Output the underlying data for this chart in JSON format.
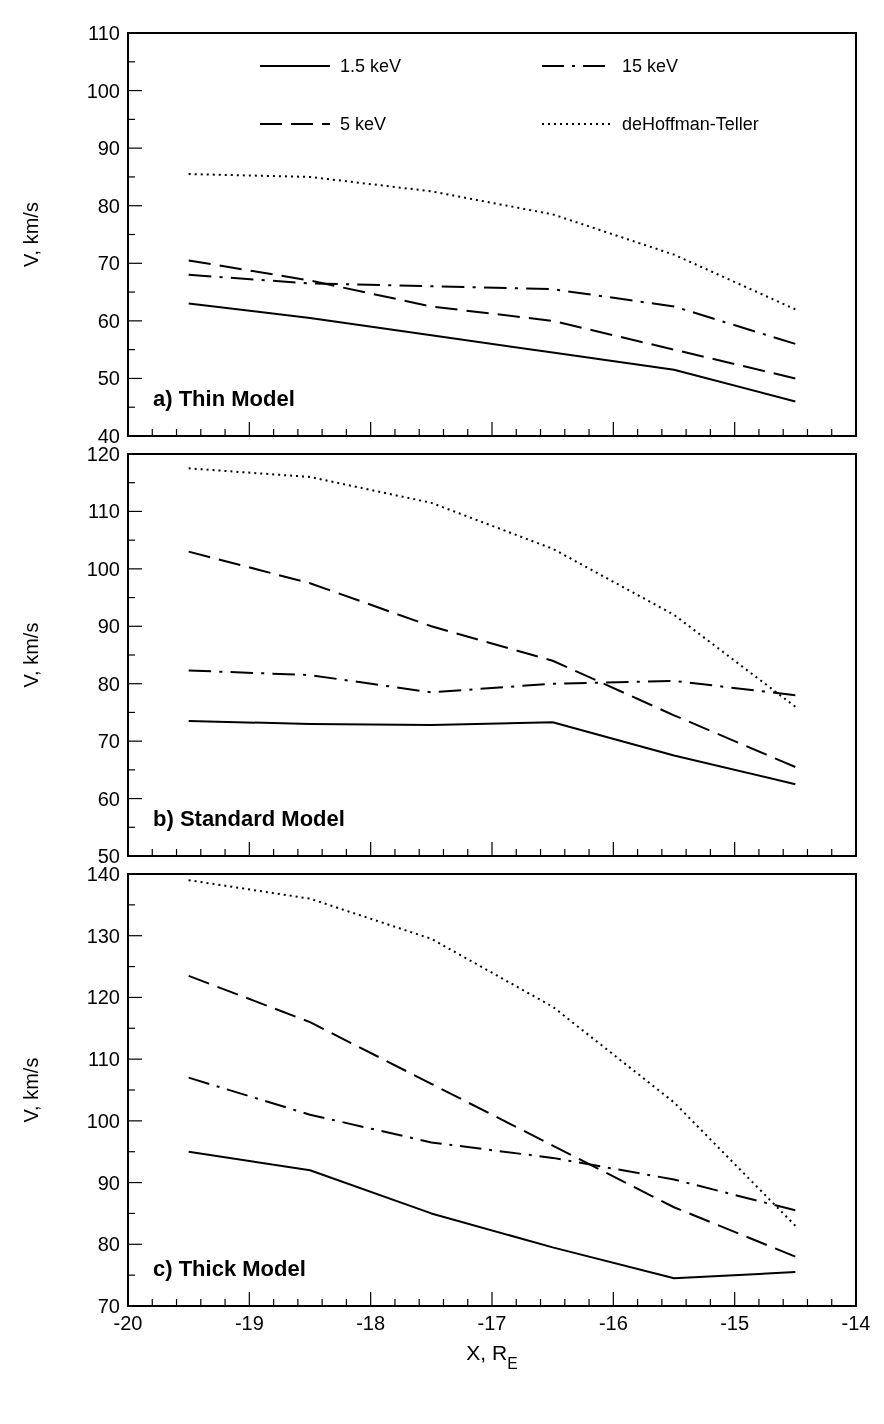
{
  "chart_data": [
    {
      "type": "line",
      "ylabel": "V, km/s",
      "annotations": [
        "a) Thin Model"
      ],
      "x": [
        -19.5,
        -18.5,
        -17.5,
        -16.5,
        -15.5,
        -14.5
      ],
      "xlim": [
        -20,
        -14
      ],
      "ylim": [
        40,
        110
      ],
      "tick_labels": "y",
      "legend": "top",
      "grid": false,
      "marker": "none",
      "xticks": [
        -20,
        {
          "value": -19.8,
          "label": null
        },
        {
          "value": -19.6,
          "label": null
        },
        {
          "value": -19.4,
          "label": null
        },
        {
          "value": -19.2,
          "label": null
        },
        -19,
        {
          "value": -18.8,
          "label": null
        },
        {
          "value": -18.6,
          "label": null
        },
        {
          "value": -18.4,
          "label": null
        },
        {
          "value": -18.2,
          "label": null
        },
        -18,
        {
          "value": -17.8,
          "label": null
        },
        {
          "value": -17.6,
          "label": null
        },
        {
          "value": -17.4,
          "label": null
        },
        {
          "value": -17.2,
          "label": null
        },
        -17,
        {
          "value": -16.8,
          "label": null
        },
        {
          "value": -16.6,
          "label": null
        },
        {
          "value": -16.4,
          "label": null
        },
        {
          "value": -16.2,
          "label": null
        },
        -16,
        {
          "value": -15.8,
          "label": null
        },
        {
          "value": -15.6,
          "label": null
        },
        {
          "value": -15.4,
          "label": null
        },
        {
          "value": -15.2,
          "label": null
        },
        -15,
        {
          "value": -14.8,
          "label": null
        },
        {
          "value": -14.6,
          "label": null
        },
        {
          "value": -14.4,
          "label": null
        },
        {
          "value": -14.2,
          "label": null
        },
        -14
      ],
      "yticks": [
        40,
        {
          "value": 45,
          "label": null
        },
        50,
        {
          "value": 55,
          "label": null
        },
        60,
        {
          "value": 65,
          "label": null
        },
        70,
        {
          "value": 75,
          "label": null
        },
        80,
        {
          "value": 85,
          "label": null
        },
        90,
        {
          "value": 95,
          "label": null
        },
        100,
        {
          "value": 105,
          "label": null
        },
        110
      ],
      "series": [
        {
          "name": "1.5 keV",
          "color": "#000000",
          "line_style": "solid",
          "values": [
            63,
            60.5,
            57.5,
            54.5,
            51.5,
            46
          ]
        },
        {
          "name": "5 keV",
          "color": "#000000",
          "line_style": "dashed",
          "values": [
            70.5,
            67,
            62.5,
            60,
            55,
            50
          ]
        },
        {
          "name": "15 keV",
          "color": "#000000",
          "line_style": "dashdot",
          "values": [
            68,
            66.5,
            66,
            65.5,
            62.5,
            56
          ]
        },
        {
          "name": "deHoffman-Teller",
          "color": "#000000",
          "line_style": "dotted",
          "values": [
            85.5,
            85,
            82.5,
            78.5,
            71.5,
            62
          ]
        }
      ]
    },
    {
      "type": "line",
      "ylabel": "V, km/s",
      "annotations": [
        "b) Standard Model"
      ],
      "x": [
        -19.5,
        -18.5,
        -17.5,
        -16.5,
        -15.5,
        -14.5
      ],
      "xlim": [
        -20,
        -14
      ],
      "ylim": [
        50,
        120
      ],
      "tick_labels": "y",
      "grid": false,
      "marker": "none",
      "xticks": [
        -20,
        {
          "value": -19.8,
          "label": null
        },
        {
          "value": -19.6,
          "label": null
        },
        {
          "value": -19.4,
          "label": null
        },
        {
          "value": -19.2,
          "label": null
        },
        -19,
        {
          "value": -18.8,
          "label": null
        },
        {
          "value": -18.6,
          "label": null
        },
        {
          "value": -18.4,
          "label": null
        },
        {
          "value": -18.2,
          "label": null
        },
        -18,
        {
          "value": -17.8,
          "label": null
        },
        {
          "value": -17.6,
          "label": null
        },
        {
          "value": -17.4,
          "label": null
        },
        {
          "value": -17.2,
          "label": null
        },
        -17,
        {
          "value": -16.8,
          "label": null
        },
        {
          "value": -16.6,
          "label": null
        },
        {
          "value": -16.4,
          "label": null
        },
        {
          "value": -16.2,
          "label": null
        },
        -16,
        {
          "value": -15.8,
          "label": null
        },
        {
          "value": -15.6,
          "label": null
        },
        {
          "value": -15.4,
          "label": null
        },
        {
          "value": -15.2,
          "label": null
        },
        -15,
        {
          "value": -14.8,
          "label": null
        },
        {
          "value": -14.6,
          "label": null
        },
        {
          "value": -14.4,
          "label": null
        },
        {
          "value": -14.2,
          "label": null
        },
        -14
      ],
      "yticks": [
        50,
        {
          "value": 55,
          "label": null
        },
        60,
        {
          "value": 65,
          "label": null
        },
        70,
        {
          "value": 75,
          "label": null
        },
        80,
        {
          "value": 85,
          "label": null
        },
        90,
        {
          "value": 95,
          "label": null
        },
        100,
        {
          "value": 105,
          "label": null
        },
        110,
        {
          "value": 115,
          "label": null
        },
        120
      ],
      "series": [
        {
          "color": "#000000",
          "line_style": "solid",
          "values": [
            73.5,
            73,
            72.8,
            73.3,
            67.5,
            62.5
          ]
        },
        {
          "color": "#000000",
          "line_style": "dashed",
          "values": [
            103,
            97.5,
            90,
            84,
            74.5,
            65.5
          ]
        },
        {
          "color": "#000000",
          "line_style": "dashdot",
          "values": [
            82.3,
            81.5,
            78.5,
            80,
            80.5,
            78
          ]
        },
        {
          "color": "#000000",
          "line_style": "dotted",
          "values": [
            117.5,
            116,
            111.5,
            103.5,
            92,
            76
          ]
        }
      ]
    },
    {
      "type": "line",
      "ylabel": "V, km/s",
      "xlabel": "X, R$_{E}$",
      "annotations": [
        "c) Thick Model"
      ],
      "x": [
        -19.5,
        -18.5,
        -17.5,
        -16.5,
        -15.5,
        -14.5
      ],
      "xlim": [
        -20,
        -14
      ],
      "ylim": [
        70,
        140
      ],
      "grid": false,
      "marker": "none",
      "xticks": [
        -20,
        {
          "value": -19.8,
          "label": null
        },
        {
          "value": -19.6,
          "label": null
        },
        {
          "value": -19.4,
          "label": null
        },
        {
          "value": -19.2,
          "label": null
        },
        -19,
        {
          "value": -18.8,
          "label": null
        },
        {
          "value": -18.6,
          "label": null
        },
        {
          "value": -18.4,
          "label": null
        },
        {
          "value": -18.2,
          "label": null
        },
        -18,
        {
          "value": -17.8,
          "label": null
        },
        {
          "value": -17.6,
          "label": null
        },
        {
          "value": -17.4,
          "label": null
        },
        {
          "value": -17.2,
          "label": null
        },
        -17,
        {
          "value": -16.8,
          "label": null
        },
        {
          "value": -16.6,
          "label": null
        },
        {
          "value": -16.4,
          "label": null
        },
        {
          "value": -16.2,
          "label": null
        },
        -16,
        {
          "value": -15.8,
          "label": null
        },
        {
          "value": -15.6,
          "label": null
        },
        {
          "value": -15.4,
          "label": null
        },
        {
          "value": -15.2,
          "label": null
        },
        -15,
        {
          "value": -14.8,
          "label": null
        },
        {
          "value": -14.6,
          "label": null
        },
        {
          "value": -14.4,
          "label": null
        },
        {
          "value": -14.2,
          "label": null
        },
        -14
      ],
      "yticks": [
        70,
        {
          "value": 75,
          "label": null
        },
        80,
        {
          "value": 85,
          "label": null
        },
        90,
        {
          "value": 95,
          "label": null
        },
        100,
        {
          "value": 105,
          "label": null
        },
        110,
        {
          "value": 115,
          "label": null
        },
        120,
        {
          "value": 125,
          "label": null
        },
        130,
        {
          "value": 135,
          "label": null
        },
        140
      ],
      "series": [
        {
          "color": "#000000",
          "line_style": "solid",
          "values": [
            95,
            92,
            85,
            79.5,
            74.5,
            75.5
          ]
        },
        {
          "color": "#000000",
          "line_style": "dashed",
          "values": [
            123.5,
            116,
            106,
            96,
            86,
            78
          ]
        },
        {
          "color": "#000000",
          "line_style": "dashdot",
          "values": [
            107,
            101,
            96.5,
            94,
            90.5,
            85.5
          ]
        },
        {
          "color": "#000000",
          "line_style": "dotted",
          "values": [
            139,
            136,
            129.5,
            118.5,
            103,
            83
          ]
        }
      ]
    }
  ]
}
